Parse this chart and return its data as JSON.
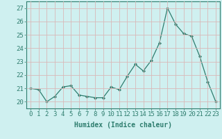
{
  "x": [
    0,
    1,
    2,
    3,
    4,
    5,
    6,
    7,
    8,
    9,
    10,
    11,
    12,
    13,
    14,
    15,
    16,
    17,
    18,
    19,
    20,
    21,
    22,
    23
  ],
  "y": [
    21.0,
    20.9,
    20.0,
    20.4,
    21.1,
    21.2,
    20.5,
    20.4,
    20.3,
    20.3,
    21.1,
    20.9,
    21.9,
    22.8,
    22.3,
    23.1,
    24.4,
    27.0,
    25.8,
    25.1,
    24.9,
    23.4,
    21.5,
    20.0
  ],
  "line_color": "#2e7d6e",
  "marker": "D",
  "marker_size": 2.0,
  "bg_color": "#cff0f0",
  "grid_color": "#d9b8b8",
  "axis_color": "#2e7d6e",
  "xlabel": "Humidex (Indice chaleur)",
  "ylabel_ticks": [
    20,
    21,
    22,
    23,
    24,
    25,
    26,
    27
  ],
  "xlim": [
    -0.5,
    23.5
  ],
  "ylim": [
    19.5,
    27.5
  ],
  "xlabel_fontsize": 7,
  "tick_fontsize": 6.5
}
